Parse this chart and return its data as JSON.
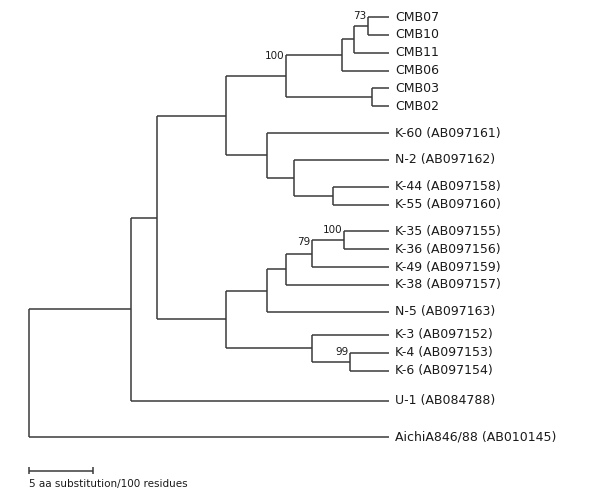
{
  "taxa": [
    "CMB07",
    "CMB10",
    "CMB11",
    "CMB06",
    "CMB03",
    "CMB02",
    "K-60 (AB097161)",
    "N-2 (AB097162)",
    "K-44 (AB097158)",
    "K-55 (AB097160)",
    "K-35 (AB097155)",
    "K-36 (AB097156)",
    "K-49 (AB097159)",
    "K-38 (AB097157)",
    "N-5 (AB097163)",
    "K-3 (AB097152)",
    "K-4 (AB097153)",
    "K-6 (AB097154)",
    "U-1 (AB084788)",
    "AichiA846/88 (AB010145)"
  ],
  "y_positions": [
    0,
    1,
    2,
    3,
    4,
    5,
    6.5,
    8,
    9.5,
    10.5,
    12,
    13,
    14,
    15,
    16.5,
    17.8,
    18.8,
    19.8,
    21.5,
    23.5
  ],
  "scale_bar_label": "5 aa substitution/100 residues",
  "line_color": "#3a3a3a",
  "text_color": "#1a1a1a",
  "bg_color": "#ffffff",
  "fontsize": 9.0,
  "bootstrap_fontsize": 7.5,
  "lw": 1.1
}
